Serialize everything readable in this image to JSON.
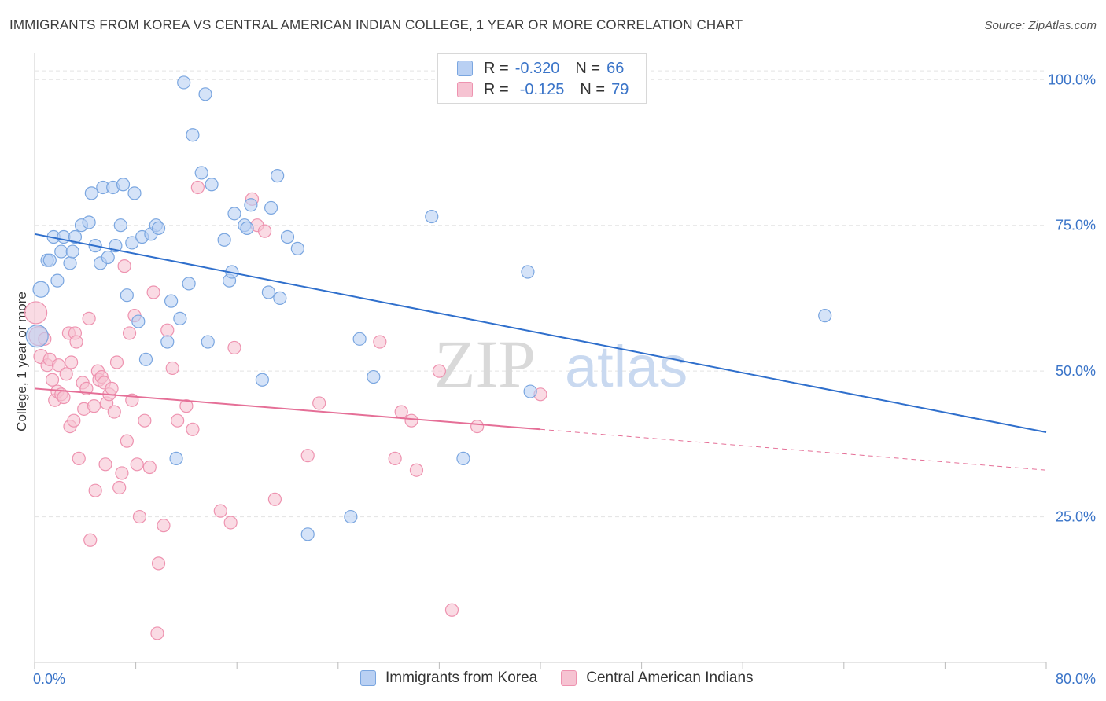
{
  "header": {
    "title": "IMMIGRANTS FROM KOREA VS CENTRAL AMERICAN INDIAN COLLEGE, 1 YEAR OR MORE CORRELATION CHART",
    "source": "Source: ZipAtlas.com"
  },
  "legend": {
    "korea": {
      "r_label": "R =",
      "r_value": "-0.320",
      "n_label": "N =",
      "n_value": "66"
    },
    "cai": {
      "r_label": "R =",
      "r_value": "-0.125",
      "n_label": "N =",
      "n_value": "79"
    }
  },
  "colors": {
    "korea_fill": "#b9d0f3",
    "korea_stroke": "#7aa6e0",
    "korea_line": "#2f6fcc",
    "cai_fill": "#f6c3d2",
    "cai_stroke": "#ee93b0",
    "cai_line": "#e56f97",
    "tick_label": "#3a74c8",
    "grid": "#e3e3e3"
  },
  "watermark": {
    "part1": "ZIP",
    "part2": "atlas"
  },
  "chart_data": {
    "type": "scatter",
    "title": "IMMIGRANTS FROM KOREA VS CENTRAL AMERICAN INDIAN COLLEGE, 1 YEAR OR MORE CORRELATION CHART",
    "xlabel": "",
    "ylabel": "College, 1 year or more",
    "xlim": [
      0,
      80
    ],
    "ylim": [
      0,
      103
    ],
    "x_tick_labels": [
      "0.0%",
      "80.0%"
    ],
    "y_ticks": [
      25,
      50,
      75,
      100
    ],
    "y_tick_labels": [
      "25.0%",
      "50.0%",
      "75.0%",
      "100.0%"
    ],
    "grid": true,
    "legend_position": "top-center",
    "series": [
      {
        "name": "Immigrants from Korea",
        "trend": {
          "x": [
            0,
            80
          ],
          "y": [
            73.5,
            39.5
          ],
          "dashed_from": null
        },
        "points": [
          [
            0.2,
            56,
            14
          ],
          [
            0.5,
            64,
            10
          ],
          [
            1.0,
            69,
            8
          ],
          [
            1.2,
            69,
            8
          ],
          [
            1.5,
            73,
            8
          ],
          [
            1.8,
            65.5,
            8
          ],
          [
            2.1,
            70.5,
            8
          ],
          [
            2.3,
            73,
            8
          ],
          [
            2.8,
            68.5,
            8
          ],
          [
            3.0,
            70.5,
            8
          ],
          [
            3.2,
            73,
            8
          ],
          [
            3.7,
            75,
            8
          ],
          [
            4.3,
            75.5,
            8
          ],
          [
            4.5,
            80.5,
            8
          ],
          [
            4.8,
            71.5,
            8
          ],
          [
            5.2,
            68.5,
            8
          ],
          [
            5.4,
            81.5,
            8
          ],
          [
            5.8,
            69.5,
            8
          ],
          [
            6.2,
            81.5,
            8
          ],
          [
            6.4,
            71.5,
            8
          ],
          [
            6.8,
            75,
            8
          ],
          [
            7.0,
            82,
            8
          ],
          [
            7.3,
            63,
            8
          ],
          [
            7.7,
            72,
            8
          ],
          [
            7.9,
            80.5,
            8
          ],
          [
            8.2,
            58.5,
            8
          ],
          [
            8.5,
            73,
            8
          ],
          [
            8.8,
            52,
            8
          ],
          [
            9.2,
            73.5,
            8
          ],
          [
            9.6,
            75,
            8
          ],
          [
            9.8,
            74.5,
            8
          ],
          [
            10.5,
            55,
            8
          ],
          [
            10.8,
            62,
            8
          ],
          [
            11.2,
            35,
            8
          ],
          [
            11.5,
            59,
            8
          ],
          [
            11.8,
            99.5,
            8
          ],
          [
            12.2,
            65,
            8
          ],
          [
            12.5,
            90.5,
            8
          ],
          [
            13.2,
            84,
            8
          ],
          [
            13.5,
            97.5,
            8
          ],
          [
            13.7,
            55,
            8
          ],
          [
            14.0,
            82,
            8
          ],
          [
            15.0,
            72.5,
            8
          ],
          [
            15.4,
            65.5,
            8
          ],
          [
            15.6,
            67,
            8
          ],
          [
            15.8,
            77,
            8
          ],
          [
            16.6,
            75,
            8
          ],
          [
            16.8,
            74.5,
            8
          ],
          [
            17.1,
            78.5,
            8
          ],
          [
            18.0,
            48.5,
            8
          ],
          [
            18.5,
            63.5,
            8
          ],
          [
            18.7,
            78,
            8
          ],
          [
            19.2,
            83.5,
            8
          ],
          [
            19.4,
            62.5,
            8
          ],
          [
            20.0,
            73,
            8
          ],
          [
            20.8,
            71,
            8
          ],
          [
            25.0,
            25,
            8
          ],
          [
            25.7,
            55.5,
            8
          ],
          [
            26.8,
            49,
            8
          ],
          [
            21.6,
            22,
            8
          ],
          [
            31.4,
            76.5,
            8
          ],
          [
            33.9,
            35,
            8
          ],
          [
            39.0,
            67,
            8
          ],
          [
            39.2,
            46.5,
            8
          ],
          [
            62.5,
            59.5,
            8
          ],
          [
            27.0,
            49.5,
            0
          ]
        ]
      },
      {
        "name": "Central American Indians",
        "trend": {
          "x": [
            0,
            40,
            80
          ],
          "y": [
            47,
            40,
            33
          ],
          "dashed_from": 40
        },
        "points": [
          [
            0.1,
            60,
            14
          ],
          [
            0.3,
            56,
            12
          ],
          [
            0.5,
            52.5,
            9
          ],
          [
            0.8,
            55.5,
            8
          ],
          [
            1.0,
            51,
            8
          ],
          [
            1.2,
            52,
            8
          ],
          [
            1.4,
            48.5,
            8
          ],
          [
            1.6,
            45,
            8
          ],
          [
            1.8,
            46.5,
            8
          ],
          [
            1.9,
            51,
            8
          ],
          [
            2.1,
            46,
            8
          ],
          [
            2.3,
            45.5,
            8
          ],
          [
            2.5,
            49.5,
            8
          ],
          [
            2.7,
            56.5,
            8
          ],
          [
            2.8,
            40.5,
            8
          ],
          [
            2.9,
            51.5,
            8
          ],
          [
            3.1,
            41.5,
            8
          ],
          [
            3.2,
            56.5,
            8
          ],
          [
            3.3,
            55,
            8
          ],
          [
            3.5,
            35,
            8
          ],
          [
            3.8,
            48,
            8
          ],
          [
            3.9,
            43.5,
            8
          ],
          [
            4.1,
            47,
            8
          ],
          [
            4.3,
            59,
            8
          ],
          [
            4.4,
            21,
            8
          ],
          [
            4.7,
            44,
            8
          ],
          [
            4.8,
            29.5,
            8
          ],
          [
            5.0,
            50,
            8
          ],
          [
            5.1,
            48.5,
            8
          ],
          [
            5.3,
            49,
            8
          ],
          [
            5.5,
            48,
            8
          ],
          [
            5.6,
            34,
            8
          ],
          [
            5.7,
            44.5,
            8
          ],
          [
            5.9,
            46,
            8
          ],
          [
            6.1,
            47,
            8
          ],
          [
            6.3,
            43,
            8
          ],
          [
            6.5,
            51.5,
            8
          ],
          [
            6.7,
            30,
            8
          ],
          [
            6.9,
            32.5,
            8
          ],
          [
            7.1,
            68,
            8
          ],
          [
            7.3,
            38,
            8
          ],
          [
            7.5,
            56.5,
            8
          ],
          [
            7.7,
            45,
            8
          ],
          [
            7.9,
            59.5,
            8
          ],
          [
            8.1,
            34,
            8
          ],
          [
            8.3,
            25,
            8
          ],
          [
            8.7,
            41.5,
            8
          ],
          [
            9.1,
            33.5,
            8
          ],
          [
            9.4,
            63.5,
            8
          ],
          [
            9.7,
            5,
            8
          ],
          [
            9.8,
            17,
            8
          ],
          [
            10.2,
            23.5,
            8
          ],
          [
            10.5,
            57,
            8
          ],
          [
            10.9,
            50.5,
            8
          ],
          [
            11.3,
            41.5,
            8
          ],
          [
            12.0,
            44,
            8
          ],
          [
            12.5,
            40,
            8
          ],
          [
            12.9,
            81.5,
            8
          ],
          [
            14.7,
            26,
            8
          ],
          [
            15.5,
            24,
            8
          ],
          [
            15.8,
            54,
            8
          ],
          [
            17.2,
            79.5,
            8
          ],
          [
            17.6,
            75,
            8
          ],
          [
            18.2,
            74,
            8
          ],
          [
            19.0,
            28,
            8
          ],
          [
            21.6,
            35.5,
            8
          ],
          [
            22.5,
            44.5,
            8
          ],
          [
            27.3,
            55,
            8
          ],
          [
            28.5,
            35,
            8
          ],
          [
            29.0,
            43,
            8
          ],
          [
            29.8,
            41.5,
            8
          ],
          [
            30.2,
            33,
            8
          ],
          [
            32.0,
            50,
            8
          ],
          [
            33.0,
            9,
            8
          ],
          [
            35.0,
            40.5,
            8
          ],
          [
            40.0,
            46,
            8
          ],
          [
            18.9,
            81.5,
            0
          ],
          [
            2.2,
            46,
            0
          ],
          [
            6.0,
            45.8,
            0
          ]
        ]
      }
    ]
  },
  "bottom_legend": {
    "korea_label": "Immigrants from Korea",
    "cai_label": "Central American Indians"
  }
}
